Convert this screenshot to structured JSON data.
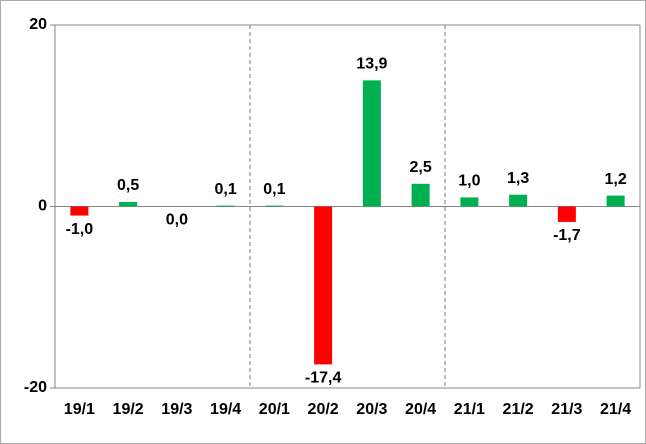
{
  "chart_data": {
    "type": "bar",
    "categories": [
      "19/1",
      "19/2",
      "19/3",
      "19/4",
      "20/1",
      "20/2",
      "20/3",
      "20/4",
      "21/1",
      "21/2",
      "21/3",
      "21/4"
    ],
    "values": [
      -1.0,
      0.5,
      0.0,
      0.1,
      0.1,
      -17.4,
      13.9,
      2.5,
      1.0,
      1.3,
      -1.7,
      1.2
    ],
    "value_labels": [
      "-1,0",
      "0,5",
      "0,0",
      "0,1",
      "0,1",
      "-17,4",
      "13,9",
      "2,5",
      "1,0",
      "1,3",
      "-1,7",
      "1,2"
    ],
    "colors": [
      "#ff0000",
      "#00b050",
      "#00b050",
      "#00b050",
      "#00b050",
      "#ff0000",
      "#00b050",
      "#00b050",
      "#00b050",
      "#00b050",
      "#ff0000",
      "#00b050"
    ],
    "ylim": [
      -20,
      20
    ],
    "yticks": [
      -20,
      0,
      20
    ]
  }
}
